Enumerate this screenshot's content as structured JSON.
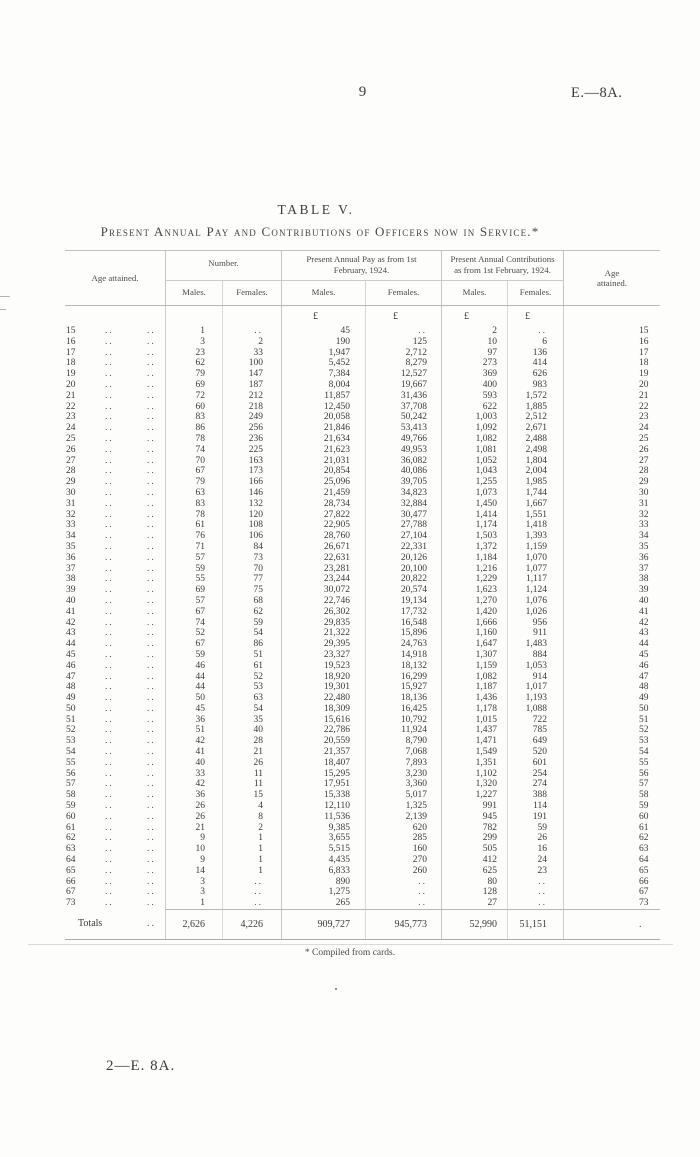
{
  "page": {
    "page_number": "9",
    "doc_ref": "E.—8A.",
    "footer_ref": "2—E. 8A.",
    "footnote": "* Compiled from cards."
  },
  "table": {
    "title": "TABLE V.",
    "subtitle": "Present Annual Pay and Contributions of Officers now in Service.*",
    "headers": {
      "age_left": "Age attained.",
      "number": "Number.",
      "pay": "Present Annual Pay as from 1st February, 1924.",
      "contributions": "Present Annual Contributions as from 1st February, 1924.",
      "males": "Males.",
      "females": "Females.",
      "age_right": "Age attained.",
      "currency": "£"
    },
    "leader_dots": "..",
    "columns": [
      "age_attained",
      "number_males",
      "number_females",
      "pay_males",
      "pay_females",
      "contributions_males",
      "contributions_females",
      "age_attained"
    ],
    "rows": [
      [
        "15",
        "1",
        "..",
        "45",
        "..",
        "2",
        ".."
      ],
      [
        "16",
        "3",
        "2",
        "190",
        "125",
        "10",
        "6"
      ],
      [
        "17",
        "23",
        "33",
        "1,947",
        "2,712",
        "97",
        "136"
      ],
      [
        "18",
        "62",
        "100",
        "5,452",
        "8,279",
        "273",
        "414"
      ],
      [
        "19",
        "79",
        "147",
        "7,384",
        "12,527",
        "369",
        "626"
      ],
      [
        "20",
        "69",
        "187",
        "8,004",
        "19,667",
        "400",
        "983"
      ],
      [
        "21",
        "72",
        "212",
        "11,857",
        "31,436",
        "593",
        "1,572"
      ],
      [
        "22",
        "60",
        "218",
        "12,450",
        "37,708",
        "622",
        "1,885"
      ],
      [
        "23",
        "83",
        "249",
        "20,058",
        "50,242",
        "1,003",
        "2,512"
      ],
      [
        "24",
        "86",
        "256",
        "21,846",
        "53,413",
        "1,092",
        "2,671"
      ],
      [
        "25",
        "78",
        "236",
        "21,634",
        "49,766",
        "1,082",
        "2,488"
      ],
      [
        "26",
        "74",
        "225",
        "21,623",
        "49,953",
        "1,081",
        "2,498"
      ],
      [
        "27",
        "70",
        "163",
        "21,031",
        "36,082",
        "1,052",
        "1,804"
      ],
      [
        "28",
        "67",
        "173",
        "20,854",
        "40,086",
        "1,043",
        "2,004"
      ],
      [
        "29",
        "79",
        "166",
        "25,096",
        "39,705",
        "1,255",
        "1,985"
      ],
      [
        "30",
        "63",
        "146",
        "21,459",
        "34,823",
        "1,073",
        "1,744"
      ],
      [
        "31",
        "83",
        "132",
        "28,734",
        "32,884",
        "1,450",
        "1,667"
      ],
      [
        "32",
        "78",
        "120",
        "27,822",
        "30,477",
        "1,414",
        "1,551"
      ],
      [
        "33",
        "61",
        "108",
        "22,905",
        "27,788",
        "1,174",
        "1,418"
      ],
      [
        "34",
        "76",
        "106",
        "28,760",
        "27,104",
        "1,503",
        "1,393"
      ],
      [
        "35",
        "71",
        "84",
        "26,671",
        "22,331",
        "1,372",
        "1,159"
      ],
      [
        "36",
        "57",
        "73",
        "22,631",
        "20,126",
        "1,184",
        "1,070"
      ],
      [
        "37",
        "59",
        "70",
        "23,281",
        "20,100",
        "1,216",
        "1,077"
      ],
      [
        "38",
        "55",
        "77",
        "23,244",
        "20,822",
        "1,229",
        "1,117"
      ],
      [
        "39",
        "69",
        "75",
        "30,072",
        "20,574",
        "1,623",
        "1,124"
      ],
      [
        "40",
        "57",
        "68",
        "22,746",
        "19,134",
        "1,270",
        "1,076"
      ],
      [
        "41",
        "67",
        "62",
        "26,302",
        "17,732",
        "1,420",
        "1,026"
      ],
      [
        "42",
        "74",
        "59",
        "29,835",
        "16,548",
        "1,666",
        "956"
      ],
      [
        "43",
        "52",
        "54",
        "21,322",
        "15,896",
        "1,160",
        "911"
      ],
      [
        "44",
        "67",
        "86",
        "29,395",
        "24,763",
        "1,647",
        "1,483"
      ],
      [
        "45",
        "59",
        "51",
        "23,327",
        "14,918",
        "1,307",
        "884"
      ],
      [
        "46",
        "46",
        "61",
        "19,523",
        "18,132",
        "1,159",
        "1,053"
      ],
      [
        "47",
        "44",
        "52",
        "18,920",
        "16,299",
        "1,082",
        "914"
      ],
      [
        "48",
        "44",
        "53",
        "19,301",
        "15,927",
        "1,187",
        "1,017"
      ],
      [
        "49",
        "50",
        "63",
        "22,480",
        "18,136",
        "1,436",
        "1,193"
      ],
      [
        "50",
        "45",
        "54",
        "18,309",
        "16,425",
        "1,178",
        "1,088"
      ],
      [
        "51",
        "36",
        "35",
        "15,616",
        "10,792",
        "1,015",
        "722"
      ],
      [
        "52",
        "51",
        "40",
        "22,786",
        "11,924",
        "1,437",
        "785"
      ],
      [
        "53",
        "42",
        "28",
        "20,559",
        "8,790",
        "1,471",
        "649"
      ],
      [
        "54",
        "41",
        "21",
        "21,357",
        "7,068",
        "1,549",
        "520"
      ],
      [
        "55",
        "40",
        "26",
        "18,407",
        "7,893",
        "1,351",
        "601"
      ],
      [
        "56",
        "33",
        "11",
        "15,295",
        "3,230",
        "1,102",
        "254"
      ],
      [
        "57",
        "42",
        "11",
        "17,951",
        "3,360",
        "1,320",
        "274"
      ],
      [
        "58",
        "36",
        "15",
        "15,338",
        "5,017",
        "1,227",
        "388"
      ],
      [
        "59",
        "26",
        "4",
        "12,110",
        "1,325",
        "991",
        "114"
      ],
      [
        "60",
        "26",
        "8",
        "11,536",
        "2,139",
        "945",
        "191"
      ],
      [
        "61",
        "21",
        "2",
        "9,385",
        "620",
        "782",
        "59"
      ],
      [
        "62",
        "9",
        "1",
        "3,655",
        "285",
        "299",
        "26"
      ],
      [
        "63",
        "10",
        "1",
        "5,515",
        "160",
        "505",
        "16"
      ],
      [
        "64",
        "9",
        "1",
        "4,435",
        "270",
        "412",
        "24"
      ],
      [
        "65",
        "14",
        "1",
        "6,833",
        "260",
        "625",
        "23"
      ],
      [
        "66",
        "3",
        "..",
        "890",
        "..",
        "80",
        ".."
      ],
      [
        "67",
        "3",
        "..",
        "1,275",
        "..",
        "128",
        ".."
      ],
      [
        "73",
        "1",
        "..",
        "265",
        "..",
        "27",
        ".."
      ]
    ],
    "totals": {
      "label": "Totals",
      "leader": "..",
      "values": [
        "2,626",
        "4,226",
        "909,727",
        "945,773",
        "52,990",
        "51,151"
      ],
      "age_cell": "."
    }
  }
}
